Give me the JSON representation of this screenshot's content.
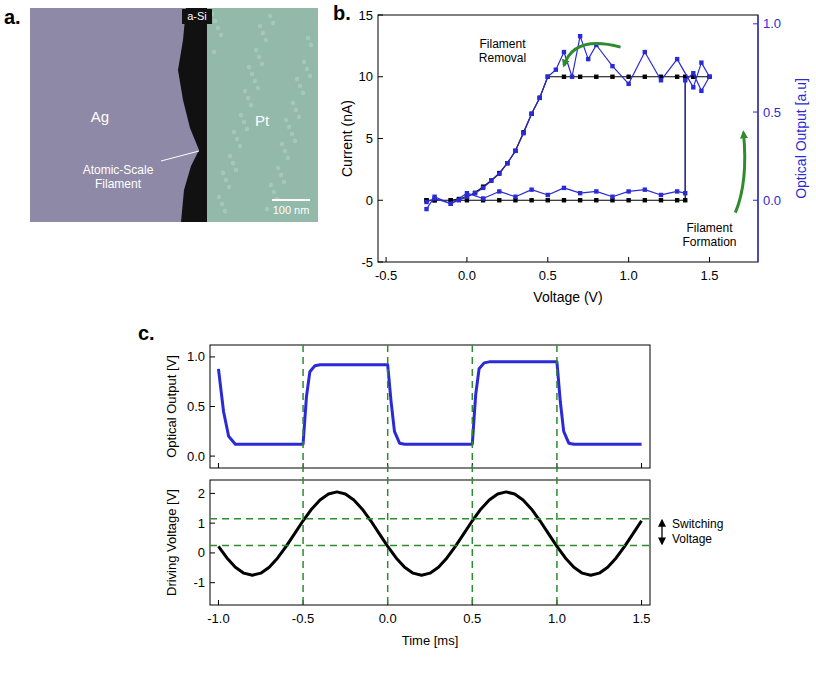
{
  "panel_labels": [
    "a.",
    "b.",
    "c."
  ],
  "micrograph": {
    "a_si": "a-Si",
    "ag": "Ag",
    "pt": "Pt",
    "filament": "Atomic-Scale Filament",
    "scale_bar": "100 nm"
  },
  "chart_data": [
    {
      "type": "line",
      "xlabel": "Voltage (V)",
      "ylabel": "Current (nA)",
      "y2label": "Optical Output [a.u]",
      "xlim": [
        -0.55,
        1.8
      ],
      "xticks": [
        -0.5,
        {
          "value": 0,
          "label": "0.0"
        },
        0.5,
        {
          "value": 1,
          "label": "1.0"
        },
        1.5
      ],
      "ylim": [
        -5,
        15
      ],
      "yticks": [
        -5,
        0,
        5,
        10,
        15
      ],
      "y2lim": [
        -0.35,
        1.05
      ],
      "y2ticks": [
        {
          "value": 0,
          "label": "0.0"
        },
        0.5,
        {
          "value": 1,
          "label": "1.0"
        }
      ],
      "annotations": [
        "Filament Removal",
        "Filament Formation"
      ],
      "series": [
        {
          "color": "#000000",
          "marker": "square",
          "x": [
            -0.25,
            -0.2,
            -0.1,
            0.0,
            0.1,
            0.2,
            0.3,
            0.4,
            0.5,
            0.6,
            0.7,
            0.8,
            0.9,
            1.0,
            1.1,
            1.2,
            1.3,
            1.35,
            1.35,
            1.4,
            1.5,
            1.4,
            1.3,
            1.2,
            1.1,
            1.0,
            0.9,
            0.8,
            0.7,
            0.6,
            0.5,
            0.45,
            0.4,
            0.35,
            0.3,
            0.25,
            0.2,
            0.15,
            0.1,
            0.05,
            0.0,
            -0.05,
            -0.1,
            -0.2,
            -0.25
          ],
          "values": [
            0,
            0,
            0,
            0,
            0,
            0,
            0,
            0,
            0,
            0,
            0,
            0,
            0,
            0,
            0,
            0,
            0,
            0,
            10,
            10,
            10,
            10,
            10,
            10,
            10,
            10,
            10,
            10,
            10,
            10,
            10,
            8.3,
            7,
            5.5,
            4,
            3,
            2.2,
            1.6,
            1.1,
            0.6,
            0.3,
            0.1,
            0,
            0,
            0
          ]
        },
        {
          "color": "#2b2bd6",
          "marker": "square",
          "axis": "y2",
          "x": [
            -0.25,
            -0.2,
            -0.1,
            0.0,
            0.1,
            0.2,
            0.3,
            0.4,
            0.5,
            0.6,
            0.7,
            0.8,
            0.9,
            1.0,
            1.1,
            1.2,
            1.3,
            1.35,
            1.35,
            1.4,
            1.45,
            1.5,
            1.45,
            1.4,
            1.3,
            1.2,
            1.1,
            1.0,
            0.9,
            0.8,
            0.75,
            0.7,
            0.65,
            0.6,
            0.55,
            0.5,
            0.45,
            0.4,
            0.35,
            0.3,
            0.25,
            0.2,
            0.15,
            0.1,
            0.05,
            0.0,
            -0.05,
            -0.1,
            -0.2,
            -0.25
          ],
          "values": [
            -0.05,
            0.02,
            -0.02,
            0.04,
            0.01,
            0.05,
            0.02,
            0.06,
            0.03,
            0.07,
            0.04,
            0.05,
            0.02,
            0.05,
            0.06,
            0.03,
            0.05,
            0.04,
            0.68,
            0.72,
            0.62,
            0.7,
            0.78,
            0.64,
            0.8,
            0.68,
            0.84,
            0.66,
            0.76,
            0.88,
            0.8,
            0.93,
            0.7,
            0.84,
            0.74,
            0.7,
            0.58,
            0.49,
            0.38,
            0.28,
            0.21,
            0.15,
            0.11,
            0.07,
            0.04,
            0.02,
            0.0,
            -0.02,
            0.01,
            -0.01
          ]
        }
      ]
    },
    {
      "type": "line",
      "tick_labels": "y",
      "ylabel": "Optical Output [V]",
      "xlim": [
        -1.05,
        1.55
      ],
      "xticks": [
        {
          "value": -1,
          "label": "-1.0"
        },
        -0.5,
        {
          "value": 0,
          "label": "0.0"
        },
        0.5,
        {
          "value": 1,
          "label": "1.0"
        },
        1.5
      ],
      "ylim": [
        -0.12,
        1.12
      ],
      "yticks": [
        {
          "value": 0,
          "label": "0.0"
        },
        0.5,
        {
          "value": 1,
          "label": "1.0"
        }
      ],
      "series": [
        {
          "color": "#2b2bd6",
          "x": [
            -1.0,
            -0.97,
            -0.94,
            -0.9,
            -0.5,
            -0.48,
            -0.46,
            -0.43,
            -0.4,
            0.0,
            0.02,
            0.04,
            0.07,
            0.1,
            0.5,
            0.52,
            0.54,
            0.57,
            0.6,
            1.0,
            1.02,
            1.04,
            1.07,
            1.1,
            1.5
          ],
          "values": [
            0.88,
            0.45,
            0.2,
            0.12,
            0.12,
            0.6,
            0.85,
            0.91,
            0.92,
            0.92,
            0.55,
            0.25,
            0.13,
            0.12,
            0.12,
            0.62,
            0.88,
            0.94,
            0.95,
            0.95,
            0.55,
            0.25,
            0.13,
            0.12,
            0.12
          ]
        }
      ]
    },
    {
      "type": "line",
      "xlabel": "Time [ms]",
      "ylabel": "Driving Voltage [V]",
      "xlim": [
        -1.05,
        1.55
      ],
      "xticks": [
        {
          "value": -1,
          "label": "-1.0"
        },
        -0.5,
        {
          "value": 0,
          "label": "0.0"
        },
        0.5,
        {
          "value": 1,
          "label": "1.0"
        },
        1.5
      ],
      "ylim": [
        -1.75,
        2.45
      ],
      "yticks": [
        -1,
        0,
        1,
        2
      ],
      "vlines": [
        -0.5,
        0,
        0.5,
        1
      ],
      "hlines": [
        0.25,
        1.15
      ],
      "annotations": [
        "Switching Voltage"
      ],
      "series": [
        {
          "color": "#000000",
          "x": [
            -1.0,
            -0.95,
            -0.9,
            -0.85,
            -0.8,
            -0.75,
            -0.7,
            -0.65,
            -0.6,
            -0.55,
            -0.5,
            -0.45,
            -0.4,
            -0.35,
            -0.3,
            -0.25,
            -0.2,
            -0.15,
            -0.1,
            -0.05,
            0.0,
            0.05,
            0.1,
            0.15,
            0.2,
            0.25,
            0.3,
            0.35,
            0.4,
            0.45,
            0.5,
            0.55,
            0.6,
            0.65,
            0.7,
            0.75,
            0.8,
            0.85,
            0.9,
            0.95,
            1.0,
            1.05,
            1.1,
            1.15,
            1.2,
            1.25,
            1.3,
            1.35,
            1.4,
            1.45,
            1.5
          ],
          "values": [
            0.22,
            -0.17,
            -0.48,
            -0.68,
            -0.75,
            -0.68,
            -0.48,
            -0.17,
            0.22,
            0.65,
            1.08,
            1.47,
            1.78,
            1.98,
            2.05,
            1.98,
            1.78,
            1.47,
            1.08,
            0.65,
            0.22,
            -0.17,
            -0.48,
            -0.68,
            -0.75,
            -0.68,
            -0.48,
            -0.17,
            0.22,
            0.65,
            1.08,
            1.47,
            1.78,
            1.98,
            2.05,
            1.98,
            1.78,
            1.47,
            1.08,
            0.65,
            0.22,
            -0.17,
            -0.48,
            -0.68,
            -0.75,
            -0.68,
            -0.48,
            -0.17,
            0.22,
            0.65,
            1.08
          ]
        }
      ]
    }
  ]
}
